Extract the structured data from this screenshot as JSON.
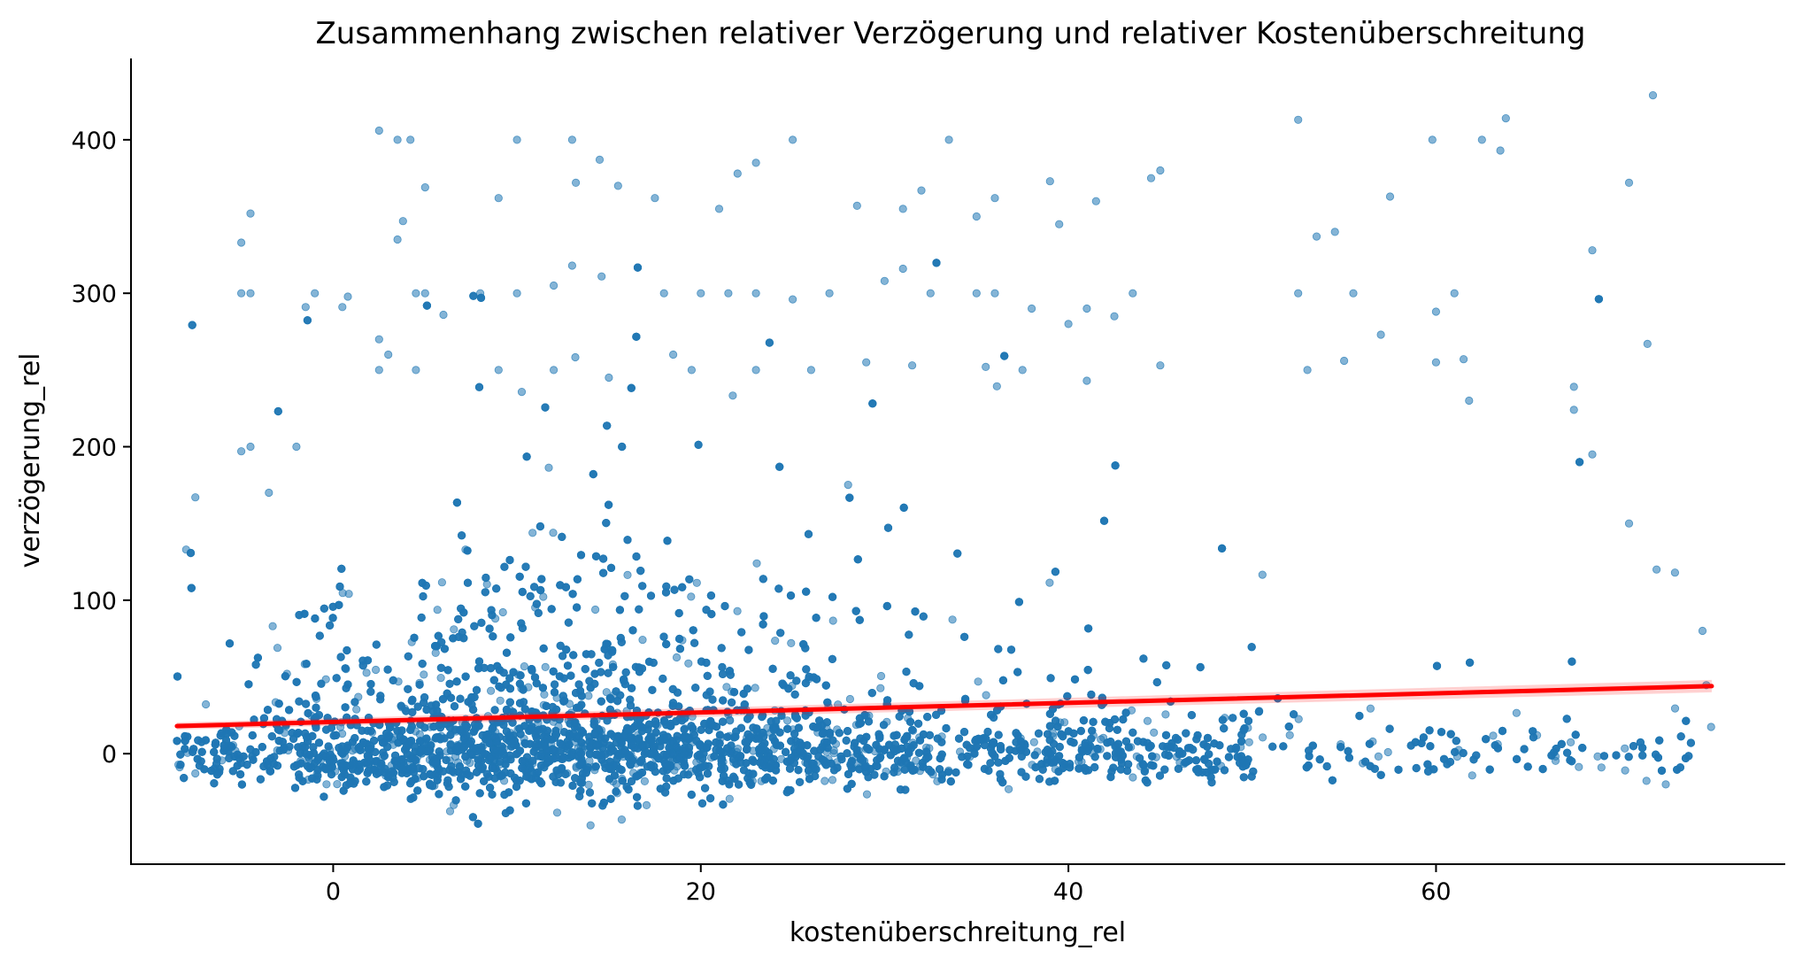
{
  "chart_data": {
    "type": "scatter",
    "title": "Zusammenhang zwischen relativer Verzögerung und relativer Kostenüberschreitung",
    "xlabel": "kostenüberschreitung_rel",
    "ylabel": "verzögerung_rel",
    "xlim": [
      -11,
      79
    ],
    "ylim": [
      -72,
      453
    ],
    "xticks": [
      0,
      20,
      40,
      60
    ],
    "yticks": [
      0,
      100,
      200,
      300,
      400
    ],
    "x_data_range": [
      -8.5,
      75
    ],
    "grid": false,
    "legend": null,
    "point_count_approx": 9000,
    "colors": {
      "points": "#1f77b4",
      "regression": "#ff0000"
    },
    "regression_line": {
      "x": [
        -8.5,
        75
      ],
      "y": [
        18,
        44
      ]
    },
    "outliers": [
      {
        "x": 2.5,
        "y": 406
      },
      {
        "x": 3.5,
        "y": 400
      },
      {
        "x": 4.2,
        "y": 400
      },
      {
        "x": 10,
        "y": 400
      },
      {
        "x": 13,
        "y": 400
      },
      {
        "x": 14.5,
        "y": 387
      },
      {
        "x": 22,
        "y": 378
      },
      {
        "x": 23,
        "y": 385
      },
      {
        "x": 25,
        "y": 400
      },
      {
        "x": 33.5,
        "y": 400
      },
      {
        "x": 52.5,
        "y": 413
      },
      {
        "x": 59.8,
        "y": 400
      },
      {
        "x": 62.5,
        "y": 400
      },
      {
        "x": 63.8,
        "y": 414
      },
      {
        "x": 63.5,
        "y": 393
      },
      {
        "x": 71.8,
        "y": 429
      },
      {
        "x": 70.5,
        "y": 372
      },
      {
        "x": 45,
        "y": 380
      },
      {
        "x": 44.5,
        "y": 375
      },
      {
        "x": 39,
        "y": 373
      },
      {
        "x": 32,
        "y": 367
      },
      {
        "x": 31,
        "y": 355
      },
      {
        "x": 57.5,
        "y": 363
      },
      {
        "x": -4.5,
        "y": 352
      },
      {
        "x": -5,
        "y": 333
      },
      {
        "x": 3.8,
        "y": 347
      },
      {
        "x": 3.5,
        "y": 335
      },
      {
        "x": 5,
        "y": 369
      },
      {
        "x": 13.2,
        "y": 372
      },
      {
        "x": 15.5,
        "y": 370
      },
      {
        "x": 17.5,
        "y": 362
      },
      {
        "x": 28.5,
        "y": 357
      },
      {
        "x": 21,
        "y": 355
      },
      {
        "x": 35,
        "y": 350
      },
      {
        "x": 36,
        "y": 362
      },
      {
        "x": 41.5,
        "y": 360
      },
      {
        "x": 39.5,
        "y": 345
      },
      {
        "x": 9,
        "y": 362
      },
      {
        "x": -5,
        "y": 300
      },
      {
        "x": -4.5,
        "y": 300
      },
      {
        "x": -1,
        "y": 300
      },
      {
        "x": -1.5,
        "y": 291
      },
      {
        "x": 0.5,
        "y": 291
      },
      {
        "x": 4.5,
        "y": 300
      },
      {
        "x": 5,
        "y": 300
      },
      {
        "x": 6,
        "y": 286
      },
      {
        "x": 8,
        "y": 300
      },
      {
        "x": 10,
        "y": 300
      },
      {
        "x": 12,
        "y": 305
      },
      {
        "x": 13,
        "y": 318
      },
      {
        "x": 18,
        "y": 300
      },
      {
        "x": 20,
        "y": 300
      },
      {
        "x": 21.5,
        "y": 300
      },
      {
        "x": 23,
        "y": 300
      },
      {
        "x": 25,
        "y": 296
      },
      {
        "x": 27,
        "y": 300
      },
      {
        "x": 30,
        "y": 308
      },
      {
        "x": 31,
        "y": 316
      },
      {
        "x": 32.5,
        "y": 300
      },
      {
        "x": 35,
        "y": 300
      },
      {
        "x": 36,
        "y": 300
      },
      {
        "x": 38,
        "y": 290
      },
      {
        "x": 40,
        "y": 280
      },
      {
        "x": 41,
        "y": 290
      },
      {
        "x": 42.5,
        "y": 285
      },
      {
        "x": 43.5,
        "y": 300
      },
      {
        "x": 52.5,
        "y": 300
      },
      {
        "x": 55.5,
        "y": 300
      },
      {
        "x": 60,
        "y": 288
      },
      {
        "x": 61,
        "y": 300
      },
      {
        "x": 54.5,
        "y": 340
      },
      {
        "x": 53.5,
        "y": 337
      },
      {
        "x": 68.5,
        "y": 328
      },
      {
        "x": 2.5,
        "y": 270
      },
      {
        "x": 3,
        "y": 260
      },
      {
        "x": 2.5,
        "y": 250
      },
      {
        "x": 4.5,
        "y": 250
      },
      {
        "x": 9,
        "y": 250
      },
      {
        "x": 12,
        "y": 250
      },
      {
        "x": 15,
        "y": 245
      },
      {
        "x": 18.5,
        "y": 260
      },
      {
        "x": 19.5,
        "y": 250
      },
      {
        "x": 23,
        "y": 250
      },
      {
        "x": 26,
        "y": 250
      },
      {
        "x": 29,
        "y": 255
      },
      {
        "x": 31.5,
        "y": 253
      },
      {
        "x": 35.5,
        "y": 252
      },
      {
        "x": 37.5,
        "y": 250
      },
      {
        "x": 41,
        "y": 243
      },
      {
        "x": 45,
        "y": 253
      },
      {
        "x": 53,
        "y": 250
      },
      {
        "x": 55,
        "y": 256
      },
      {
        "x": 57,
        "y": 273
      },
      {
        "x": 60,
        "y": 255
      },
      {
        "x": 61.5,
        "y": 257
      },
      {
        "x": 67.5,
        "y": 239
      },
      {
        "x": 71.5,
        "y": 267
      },
      {
        "x": 67.5,
        "y": 224
      },
      {
        "x": 61.8,
        "y": 230
      },
      {
        "x": -5,
        "y": 197
      },
      {
        "x": -4.5,
        "y": 200
      },
      {
        "x": -2,
        "y": 200
      },
      {
        "x": -3.5,
        "y": 170
      },
      {
        "x": -8,
        "y": 133
      },
      {
        "x": -7.5,
        "y": 167
      },
      {
        "x": 68.5,
        "y": 195
      },
      {
        "x": 70.5,
        "y": 150
      },
      {
        "x": 72,
        "y": 120
      },
      {
        "x": 73,
        "y": 118
      },
      {
        "x": 74.5,
        "y": 80
      },
      {
        "x": 72.5,
        "y": -20
      }
    ]
  }
}
